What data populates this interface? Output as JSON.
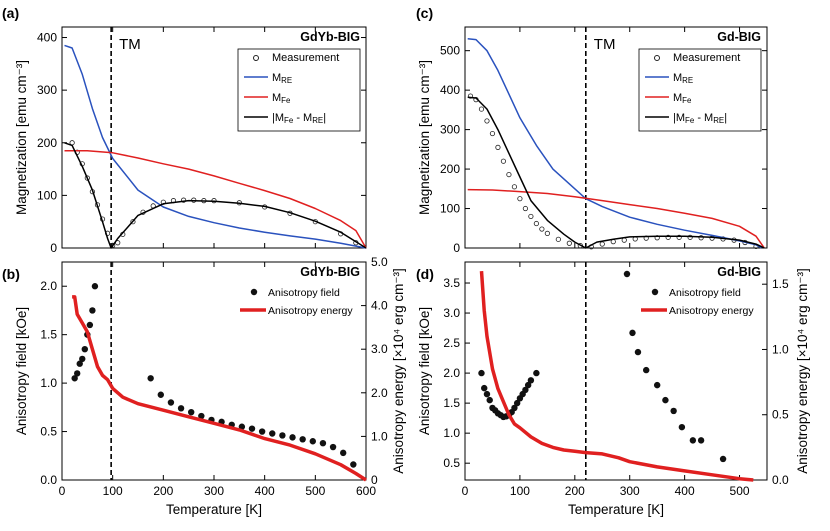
{
  "colors": {
    "re": "#2a52be",
    "fe": "#e02020",
    "diff": "#000000",
    "energy": "#e02020",
    "marker": "#111111"
  },
  "chart_data": [
    {
      "panel": "(a)",
      "type": "line",
      "sample": "GdYb-BIG",
      "xlabel": "",
      "ylabel": "Magnetization  [emu cm⁻³]",
      "xlim": [
        0,
        600
      ],
      "ylim": [
        0,
        420
      ],
      "xticks": [
        0,
        100,
        200,
        300,
        400,
        500,
        600
      ],
      "yticks": [
        0,
        100,
        200,
        300,
        400
      ],
      "show_x_ticklabels": false,
      "tm_x": 97,
      "tm_label": "TM",
      "legend": [
        "Measurement",
        "MRE",
        "MFe",
        "|MFe - MRE|"
      ],
      "series": [
        {
          "name": "Measurement",
          "kind": "markers",
          "x": [
            20,
            30,
            40,
            50,
            60,
            70,
            80,
            90,
            100,
            110,
            120,
            140,
            160,
            180,
            200,
            220,
            240,
            260,
            280,
            300,
            350,
            400,
            450,
            500,
            550,
            580
          ],
          "y": [
            200,
            182,
            160,
            133,
            107,
            82,
            55,
            28,
            5,
            10,
            26,
            50,
            68,
            80,
            87,
            90,
            91,
            91,
            90,
            90,
            86,
            78,
            66,
            50,
            27,
            10
          ]
        },
        {
          "name": "MRE",
          "kind": "line",
          "x": [
            5,
            20,
            40,
            60,
            80,
            100,
            150,
            200,
            250,
            300,
            350,
            400,
            450,
            500,
            550,
            600
          ],
          "y": [
            385,
            380,
            330,
            265,
            210,
            170,
            110,
            78,
            60,
            48,
            38,
            30,
            23,
            17,
            9,
            0
          ]
        },
        {
          "name": "MFe",
          "kind": "line",
          "x": [
            5,
            50,
            100,
            150,
            200,
            250,
            300,
            350,
            400,
            450,
            500,
            550,
            580,
            600
          ],
          "y": [
            185,
            185,
            181,
            171,
            160,
            150,
            137,
            123,
            109,
            94,
            75,
            52,
            33,
            0
          ]
        },
        {
          "name": "|MFe - MRE|",
          "kind": "line",
          "x": [
            5,
            20,
            40,
            60,
            80,
            90,
            97,
            110,
            130,
            150,
            200,
            250,
            300,
            350,
            400,
            450,
            500,
            550,
            600
          ],
          "y": [
            200,
            195,
            155,
            110,
            50,
            18,
            0,
            18,
            40,
            62,
            84,
            90,
            89,
            85,
            79,
            67,
            51,
            30,
            0
          ]
        }
      ]
    },
    {
      "panel": "(c)",
      "type": "line",
      "sample": "Gd-BIG",
      "xlabel": "",
      "ylabel": "Magnetization  [emu cm⁻³]",
      "xlim": [
        0,
        550
      ],
      "ylim": [
        0,
        560
      ],
      "xticks": [
        0,
        100,
        200,
        300,
        400,
        500
      ],
      "yticks": [
        0,
        100,
        200,
        300,
        400,
        500
      ],
      "show_x_ticklabels": false,
      "tm_x": 220,
      "tm_label": "TM",
      "legend": [
        "Measurement",
        "MRE",
        "MFe",
        "|MFe - MRE|"
      ],
      "series": [
        {
          "name": "Measurement",
          "kind": "markers",
          "x": [
            10,
            20,
            30,
            40,
            50,
            60,
            70,
            80,
            90,
            100,
            110,
            120,
            130,
            140,
            150,
            170,
            190,
            210,
            230,
            250,
            270,
            290,
            310,
            330,
            350,
            370,
            390,
            410,
            430,
            450,
            470,
            490,
            510,
            530
          ],
          "y": [
            385,
            376,
            352,
            322,
            290,
            255,
            220,
            186,
            155,
            125,
            100,
            80,
            62,
            48,
            37,
            22,
            12,
            6,
            3,
            10,
            16,
            20,
            23,
            25,
            26,
            27,
            27,
            27,
            26,
            25,
            23,
            20,
            14,
            4
          ]
        },
        {
          "name": "MRE",
          "kind": "line",
          "x": [
            5,
            20,
            40,
            60,
            80,
            100,
            130,
            160,
            200,
            220,
            250,
            300,
            350,
            400,
            450,
            500,
            530,
            540
          ],
          "y": [
            530,
            528,
            500,
            450,
            390,
            330,
            260,
            200,
            150,
            125,
            105,
            78,
            60,
            45,
            32,
            18,
            8,
            0
          ]
        },
        {
          "name": "MFe",
          "kind": "line",
          "x": [
            5,
            50,
            100,
            150,
            200,
            250,
            300,
            350,
            400,
            450,
            500,
            530,
            545
          ],
          "y": [
            148,
            147,
            143,
            138,
            130,
            120,
            110,
            100,
            88,
            75,
            55,
            30,
            0
          ]
        },
        {
          "name": "|MFe - MRE|",
          "kind": "line",
          "x": [
            5,
            20,
            40,
            60,
            80,
            100,
            120,
            150,
            180,
            200,
            220,
            240,
            270,
            300,
            350,
            400,
            450,
            500,
            530,
            545
          ],
          "y": [
            382,
            380,
            352,
            300,
            240,
            180,
            120,
            70,
            35,
            15,
            0,
            15,
            22,
            28,
            30,
            30,
            27,
            20,
            10,
            0
          ]
        }
      ]
    },
    {
      "panel": "(b)",
      "type": "scatter",
      "sample": "GdYb-BIG",
      "xlabel": "Temperature [K]",
      "ylabel": "Anisotropy field [kOe]",
      "y2label": "Anisotropy energy [×10⁴ erg cm⁻³]",
      "xlim": [
        0,
        600
      ],
      "ylim": [
        0,
        2.25
      ],
      "y2lim": [
        0,
        5.0
      ],
      "xticks": [
        0,
        100,
        200,
        300,
        400,
        500,
        600
      ],
      "yticks": [
        0.0,
        0.5,
        1.0,
        1.5,
        2.0
      ],
      "y2ticks": [
        0,
        1.0,
        2.0,
        3.0,
        4.0,
        5.0
      ],
      "y2ticklabels": [
        "0",
        "1.0",
        "2.0",
        "3.0",
        "4.0",
        "5.0"
      ],
      "show_x_ticklabels": true,
      "tm_x": 97,
      "legend": [
        "Anisotropy field",
        "Anisotropy energy"
      ],
      "series": [
        {
          "name": "Anisotropy field",
          "kind": "dots",
          "axis": "left",
          "x": [
            25,
            30,
            35,
            40,
            45,
            50,
            55,
            60,
            65,
            175,
            195,
            215,
            235,
            255,
            275,
            295,
            315,
            335,
            355,
            375,
            395,
            415,
            435,
            455,
            475,
            495,
            515,
            535,
            555,
            575
          ],
          "y": [
            1.05,
            1.1,
            1.2,
            1.25,
            1.35,
            1.5,
            1.6,
            1.75,
            2.0,
            1.05,
            0.88,
            0.8,
            0.74,
            0.7,
            0.66,
            0.62,
            0.6,
            0.57,
            0.55,
            0.53,
            0.5,
            0.48,
            0.46,
            0.44,
            0.42,
            0.4,
            0.38,
            0.34,
            0.28,
            0.16
          ]
        },
        {
          "name": "Anisotropy energy",
          "kind": "line",
          "axis": "right",
          "x": [
            20,
            25,
            30,
            40,
            50,
            60,
            70,
            80,
            90,
            100,
            120,
            150,
            200,
            250,
            300,
            350,
            400,
            450,
            500,
            550,
            580,
            600
          ],
          "y": [
            4.2,
            4.2,
            3.8,
            3.6,
            3.4,
            3.0,
            2.6,
            2.4,
            2.3,
            2.1,
            1.9,
            1.75,
            1.6,
            1.45,
            1.3,
            1.15,
            0.95,
            0.8,
            0.6,
            0.35,
            0.15,
            0.0
          ]
        }
      ]
    },
    {
      "panel": "(d)",
      "type": "scatter",
      "sample": "Gd-BIG",
      "xlabel": "Temperature [K]",
      "ylabel": "Anisotropy field [kOe]",
      "y2label": "Anisotropy energy [×10⁴ erg cm⁻³]",
      "xlim": [
        0,
        550
      ],
      "ylim": [
        0.22,
        3.85
      ],
      "y2lim": [
        0,
        1.67
      ],
      "xticks": [
        0,
        100,
        200,
        300,
        400,
        500
      ],
      "yticks": [
        0.5,
        1.0,
        1.5,
        2.0,
        2.5,
        3.0,
        3.5
      ],
      "y2ticks": [
        0.0,
        0.5,
        1.0,
        1.5
      ],
      "y2ticklabels": [
        "0.0",
        "0.5",
        "1.0",
        "1.5"
      ],
      "show_x_ticklabels": true,
      "tm_x": 220,
      "legend": [
        "Anisotropy field",
        "Anisotropy energy"
      ],
      "series": [
        {
          "name": "Anisotropy field",
          "kind": "dots",
          "axis": "left",
          "x": [
            30,
            35,
            40,
            45,
            50,
            55,
            60,
            65,
            70,
            75,
            80,
            85,
            90,
            95,
            100,
            105,
            110,
            115,
            120,
            130,
            295,
            305,
            315,
            330,
            350,
            365,
            380,
            395,
            415,
            430,
            470
          ],
          "y": [
            2.0,
            1.75,
            1.65,
            1.55,
            1.42,
            1.38,
            1.33,
            1.3,
            1.27,
            1.28,
            1.3,
            1.35,
            1.42,
            1.5,
            1.58,
            1.65,
            1.72,
            1.8,
            1.88,
            2.0,
            3.65,
            2.67,
            2.35,
            2.05,
            1.8,
            1.55,
            1.37,
            1.1,
            0.88,
            0.88,
            0.57
          ]
        },
        {
          "name": "Anisotropy energy",
          "kind": "line",
          "axis": "right",
          "x": [
            30,
            35,
            40,
            50,
            60,
            70,
            80,
            90,
            100,
            120,
            140,
            160,
            180,
            200,
            220,
            250,
            280,
            300,
            350,
            400,
            450,
            500,
            525
          ],
          "y": [
            1.6,
            1.3,
            1.1,
            0.85,
            0.7,
            0.6,
            0.5,
            0.43,
            0.4,
            0.33,
            0.28,
            0.25,
            0.23,
            0.22,
            0.21,
            0.2,
            0.17,
            0.14,
            0.1,
            0.07,
            0.04,
            0.01,
            0.0
          ]
        }
      ]
    }
  ]
}
